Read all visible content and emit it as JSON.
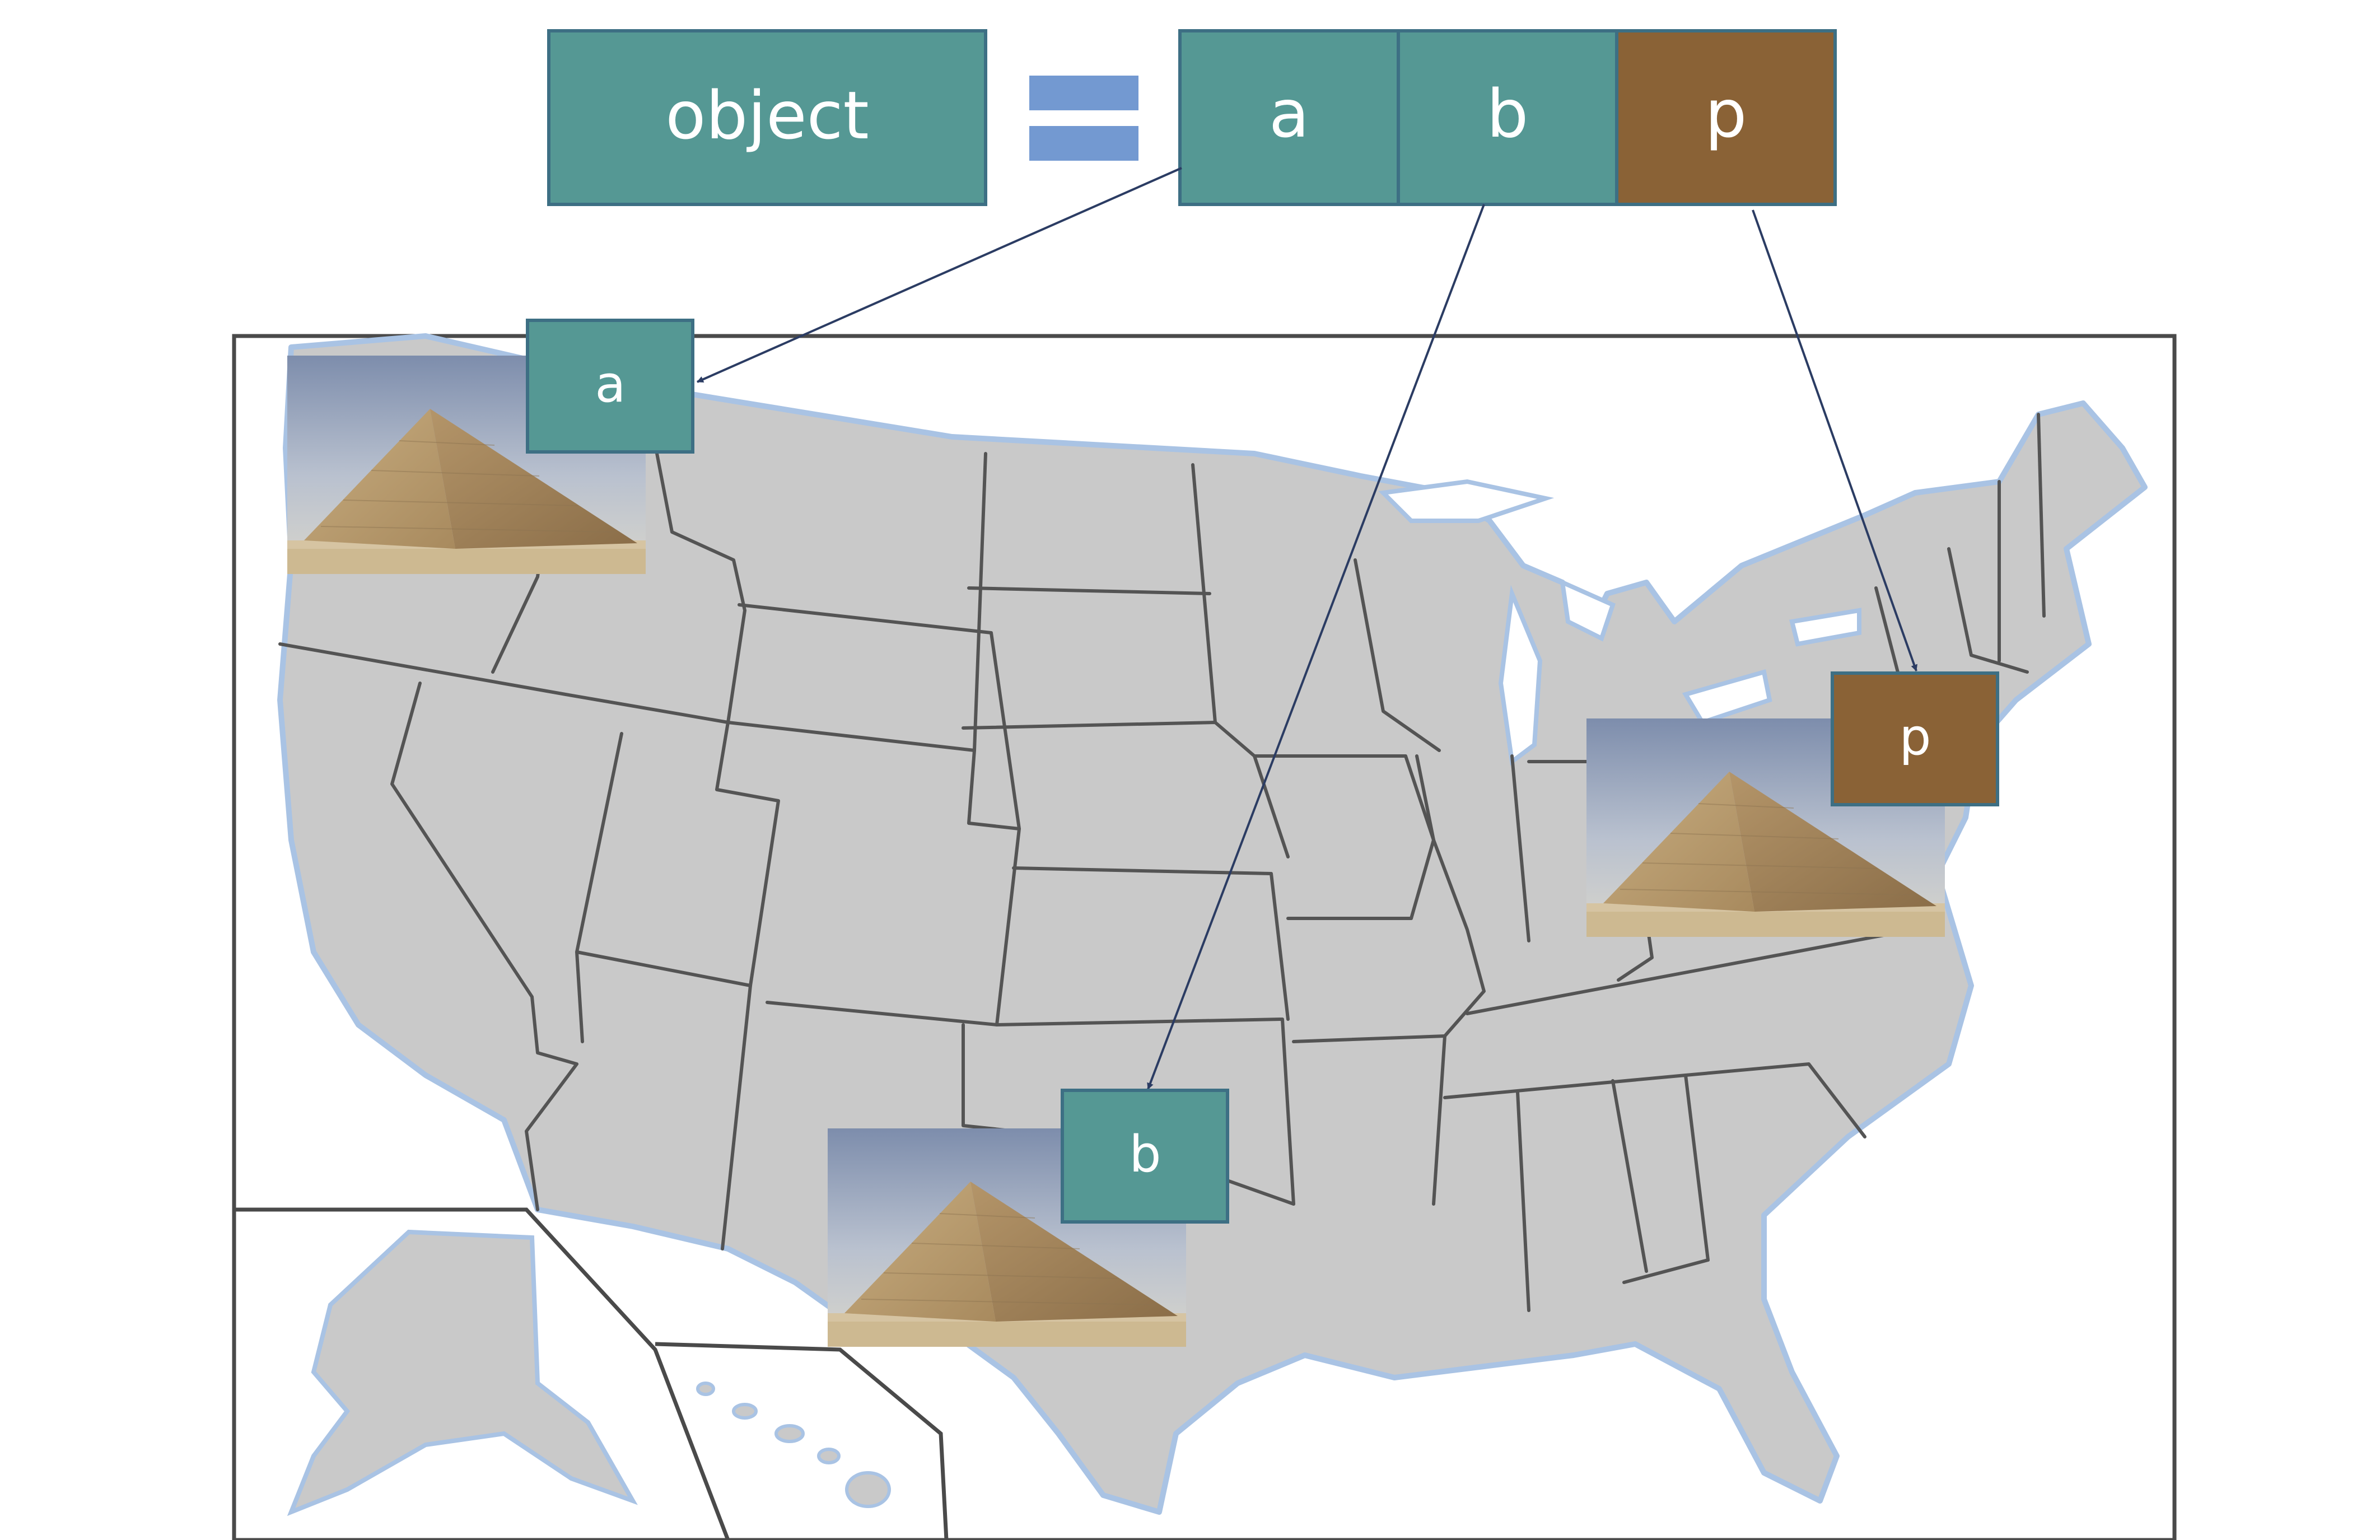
{
  "equation": {
    "object_label": "object",
    "equals_icon": "equals-sign-icon",
    "components": [
      {
        "label": "a",
        "color": "#559894"
      },
      {
        "label": "b",
        "color": "#559894"
      },
      {
        "label": "p",
        "color": "#8a6236"
      }
    ]
  },
  "markers": [
    {
      "label": "a",
      "color": "#559894",
      "image": "pyramid-photo"
    },
    {
      "label": "p",
      "color": "#8a6236",
      "image": "pyramid-photo"
    },
    {
      "label": "b",
      "color": "#559894",
      "image": "pyramid-photo"
    }
  ],
  "map": {
    "subject": "us-states-map",
    "land_color": "#c9c9c9",
    "border_color": "#545454",
    "coast_color": "#a9c3e4"
  },
  "colors": {
    "teal": "#559894",
    "brown": "#8a6236",
    "equals": "#7399d1",
    "arrow": "#2b3c63"
  }
}
